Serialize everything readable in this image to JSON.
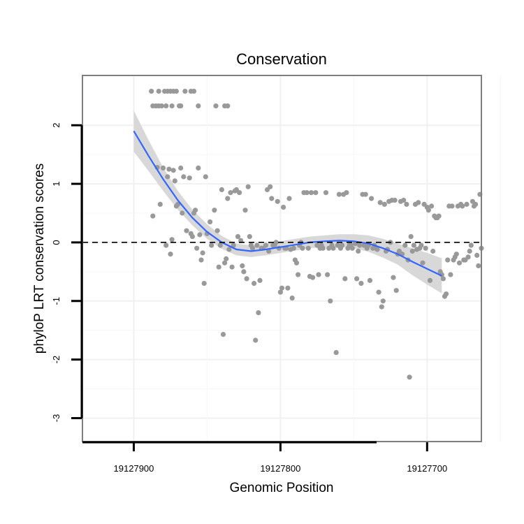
{
  "chart_data": {
    "type": "scatter",
    "title": "Conservation",
    "xlabel": "Genomic Position",
    "ylabel": "phyloP LRT conservation scores",
    "x_reversed": true,
    "xlim": [
      19127935,
      19127663
    ],
    "ylim": [
      -3.4,
      2.85
    ],
    "x_ticks": [
      19127900,
      19127800,
      19127700
    ],
    "x_tick_labels": [
      "19127900",
      "19127800",
      "19127700"
    ],
    "y_ticks": [
      -3,
      -2,
      -1,
      0,
      1,
      2
    ],
    "y_tick_labels": [
      "-3",
      "-2",
      "-1",
      "0",
      "1",
      "2"
    ],
    "reference_line_y": 0,
    "point_color": "#999999",
    "smooth_color": "#3366FF",
    "band_color": "#d4d4d4",
    "grid": true,
    "points": [
      [
        19127888,
        2.58
      ],
      [
        19127883,
        2.58
      ],
      [
        19127879,
        2.58
      ],
      [
        19127877,
        2.58
      ],
      [
        19127875,
        2.58
      ],
      [
        19127873,
        2.58
      ],
      [
        19127871,
        2.58
      ],
      [
        19127865,
        2.58
      ],
      [
        19127861,
        2.58
      ],
      [
        19127859,
        2.58
      ],
      [
        19127887,
        2.33
      ],
      [
        19127885,
        2.33
      ],
      [
        19127883,
        2.33
      ],
      [
        19127881,
        2.33
      ],
      [
        19127878,
        2.33
      ],
      [
        19127874,
        2.33
      ],
      [
        19127869,
        2.33
      ],
      [
        19127868,
        2.33
      ],
      [
        19127856,
        2.33
      ],
      [
        19127844,
        2.33
      ],
      [
        19127838,
        2.33
      ],
      [
        19127836,
        2.33
      ],
      [
        19127887,
        0.45
      ],
      [
        19127884,
        1.28
      ],
      [
        19127882,
        0.65
      ],
      [
        19127880,
        1.27
      ],
      [
        19127878,
        -0.05
      ],
      [
        19127877,
        1.12
      ],
      [
        19127876,
        1.25
      ],
      [
        19127875,
        -0.2
      ],
      [
        19127874,
        0.05
      ],
      [
        19127873,
        1.23
      ],
      [
        19127872,
        1.05
      ],
      [
        19127871,
        0.62
      ],
      [
        19127870,
        0.65
      ],
      [
        19127868,
        1.27
      ],
      [
        19127867,
        0.5
      ],
      [
        19127866,
        1.12
      ],
      [
        19127864,
        0.2
      ],
      [
        19127862,
        1.1
      ],
      [
        19127861,
        0.15
      ],
      [
        19127860,
        0.1
      ],
      [
        19127859,
        0.5
      ],
      [
        19127858,
        0.55
      ],
      [
        19127857,
        -0.1
      ],
      [
        19127856,
        1.27
      ],
      [
        19127855,
        0.13
      ],
      [
        19127854,
        -0.3
      ],
      [
        19127853,
        -0.18
      ],
      [
        19127852,
        -0.7
      ],
      [
        19127851,
        1.12
      ],
      [
        19127850,
        0.15
      ],
      [
        19127848,
        0.35
      ],
      [
        19127847,
        -0.05
      ],
      [
        19127845,
        0.55
      ],
      [
        19127843,
        0.2
      ],
      [
        19127842,
        -0.42
      ],
      [
        19127841,
        -0.05
      ],
      [
        19127840,
        0.9
      ],
      [
        19127839,
        -1.57
      ],
      [
        19127838,
        -0.35
      ],
      [
        19127837,
        -0.28
      ],
      [
        19127836,
        0.75
      ],
      [
        19127835,
        -0.12
      ],
      [
        19127834,
        0.85
      ],
      [
        19127833,
        -0.42
      ],
      [
        19127832,
        -0.05
      ],
      [
        19127831,
        0.88
      ],
      [
        19127830,
        0.9
      ],
      [
        19127829,
        0.1
      ],
      [
        19127828,
        0.85
      ],
      [
        19127827,
        0.03
      ],
      [
        19127826,
        -0.4
      ],
      [
        19127825,
        -0.5
      ],
      [
        19127824,
        0.55
      ],
      [
        19127823,
        -0.62
      ],
      [
        19127822,
        0.95
      ],
      [
        19127821,
        0.1
      ],
      [
        19127820,
        -0.05
      ],
      [
        19127819,
        -0.1
      ],
      [
        19127818,
        -0.7
      ],
      [
        19127817,
        -1.67
      ],
      [
        19127816,
        -0.05
      ],
      [
        19127815,
        -1.2
      ],
      [
        19127814,
        -0.65
      ],
      [
        19127813,
        -0.1
      ],
      [
        19127812,
        -0.1
      ],
      [
        19127810,
        -0.05
      ],
      [
        19127809,
        0.9
      ],
      [
        19127808,
        -0.15
      ],
      [
        19127807,
        0.95
      ],
      [
        19127806,
        0.75
      ],
      [
        19127805,
        -0.05
      ],
      [
        19127804,
        -0.05
      ],
      [
        19127803,
        0.0
      ],
      [
        19127802,
        0.7
      ],
      [
        19127801,
        -0.1
      ],
      [
        19127800,
        -0.85
      ],
      [
        19127799,
        -0.78
      ],
      [
        19127798,
        0.6
      ],
      [
        19127797,
        -0.1
      ],
      [
        19127796,
        -0.1
      ],
      [
        19127795,
        -0.78
      ],
      [
        19127794,
        0.75
      ],
      [
        19127793,
        -0.12
      ],
      [
        19127792,
        -0.95
      ],
      [
        19127791,
        -0.1
      ],
      [
        19127790,
        -0.3
      ],
      [
        19127789,
        -0.35
      ],
      [
        19127788,
        -0.55
      ],
      [
        19127787,
        -0.05
      ],
      [
        19127786,
        0.0
      ],
      [
        19127785,
        -0.1
      ],
      [
        19127784,
        0.85
      ],
      [
        19127782,
        0.85
      ],
      [
        19127781,
        -0.1
      ],
      [
        19127780,
        -0.58
      ],
      [
        19127779,
        0.85
      ],
      [
        19127778,
        -0.6
      ],
      [
        19127776,
        0.85
      ],
      [
        19127775,
        -0.05
      ],
      [
        19127774,
        -0.55
      ],
      [
        19127773,
        -0.1
      ],
      [
        19127772,
        -0.05
      ],
      [
        19127771,
        -0.1
      ],
      [
        19127769,
        0.85
      ],
      [
        19127768,
        -0.55
      ],
      [
        19127767,
        -0.1
      ],
      [
        19127766,
        -1.0
      ],
      [
        19127765,
        -0.05
      ],
      [
        19127764,
        -0.1
      ],
      [
        19127762,
        -1.88
      ],
      [
        19127761,
        -0.05
      ],
      [
        19127760,
        0.82
      ],
      [
        19127759,
        -0.1
      ],
      [
        19127758,
        -0.05
      ],
      [
        19127757,
        0.82
      ],
      [
        19127756,
        -0.62
      ],
      [
        19127755,
        0.85
      ],
      [
        19127754,
        -0.1
      ],
      [
        19127753,
        -0.05
      ],
      [
        19127752,
        -0.05
      ],
      [
        19127751,
        -0.1
      ],
      [
        19127749,
        -0.02
      ],
      [
        19127748,
        -0.62
      ],
      [
        19127747,
        -0.15
      ],
      [
        19127746,
        -0.05
      ],
      [
        19127745,
        -0.7
      ],
      [
        19127744,
        0.82
      ],
      [
        19127743,
        -0.05
      ],
      [
        19127742,
        0.82
      ],
      [
        19127741,
        -0.1
      ],
      [
        19127740,
        -0.05
      ],
      [
        19127739,
        -0.65
      ],
      [
        19127738,
        0.75
      ],
      [
        19127737,
        -0.1
      ],
      [
        19127736,
        -0.05
      ],
      [
        19127735,
        -0.1
      ],
      [
        19127734,
        -0.12
      ],
      [
        19127733,
        -0.85
      ],
      [
        19127732,
        0.68
      ],
      [
        19127731,
        -1.1
      ],
      [
        19127730,
        -1.0
      ],
      [
        19127729,
        0.65
      ],
      [
        19127728,
        -0.15
      ],
      [
        19127727,
        -0.12
      ],
      [
        19127726,
        0.7
      ],
      [
        19127725,
        0.0
      ],
      [
        19127724,
        0.72
      ],
      [
        19127723,
        -0.6
      ],
      [
        19127722,
        0.72
      ],
      [
        19127721,
        -0.82
      ],
      [
        19127720,
        -0.2
      ],
      [
        19127719,
        -0.15
      ],
      [
        19127718,
        0.7
      ],
      [
        19127717,
        -0.2
      ],
      [
        19127716,
        0.72
      ],
      [
        19127715,
        -0.05
      ],
      [
        19127714,
        0.65
      ],
      [
        19127713,
        -0.3
      ],
      [
        19127712,
        -2.3
      ],
      [
        19127711,
        0.1
      ],
      [
        19127710,
        -0.15
      ],
      [
        19127709,
        -0.05
      ],
      [
        19127708,
        0.65
      ],
      [
        19127707,
        -0.12
      ],
      [
        19127706,
        0.68
      ],
      [
        19127705,
        -0.1
      ],
      [
        19127704,
        -0.05
      ],
      [
        19127703,
        -0.35
      ],
      [
        19127702,
        0.65
      ],
      [
        19127701,
        -0.1
      ],
      [
        19127700,
        0.6
      ],
      [
        19127699,
        0.55
      ],
      [
        19127698,
        -0.65
      ],
      [
        19127697,
        0.62
      ],
      [
        19127696,
        -0.15
      ],
      [
        19127695,
        0.45
      ],
      [
        19127694,
        0.42
      ],
      [
        19127693,
        0.42
      ],
      [
        19127692,
        0.45
      ],
      [
        19127691,
        -0.5
      ],
      [
        19127690,
        -0.55
      ],
      [
        19127689,
        -0.62
      ],
      [
        19127688,
        -0.92
      ],
      [
        19127687,
        -0.88
      ],
      [
        19127686,
        -0.3
      ],
      [
        19127685,
        0.62
      ],
      [
        19127684,
        -0.55
      ],
      [
        19127683,
        0.62
      ],
      [
        19127682,
        -0.3
      ],
      [
        19127681,
        -0.25
      ],
      [
        19127680,
        -0.2
      ],
      [
        19127679,
        0.62
      ],
      [
        19127678,
        -0.35
      ],
      [
        19127677,
        0.65
      ],
      [
        19127676,
        0.62
      ],
      [
        19127675,
        -0.3
      ],
      [
        19127674,
        -0.3
      ],
      [
        19127673,
        0.65
      ],
      [
        19127672,
        -0.25
      ],
      [
        19127671,
        -0.15
      ],
      [
        19127670,
        -0.05
      ],
      [
        19127669,
        0.7
      ],
      [
        19127668,
        0.62
      ],
      [
        19127667,
        0.65
      ],
      [
        19127666,
        -0.22
      ],
      [
        19127665,
        -0.4
      ],
      [
        19127664,
        0.82
      ],
      [
        19127663,
        -0.1
      ]
    ],
    "smooth_fit": [
      [
        19127900,
        1.9
      ],
      [
        19127890,
        1.48
      ],
      [
        19127880,
        1.08
      ],
      [
        19127870,
        0.72
      ],
      [
        19127860,
        0.42
      ],
      [
        19127850,
        0.18
      ],
      [
        19127840,
        0.0
      ],
      [
        19127830,
        -0.12
      ],
      [
        19127820,
        -0.15
      ],
      [
        19127810,
        -0.12
      ],
      [
        19127800,
        -0.08
      ],
      [
        19127790,
        -0.04
      ],
      [
        19127780,
        0.0
      ],
      [
        19127770,
        0.02
      ],
      [
        19127760,
        0.03
      ],
      [
        19127750,
        0.02
      ],
      [
        19127740,
        -0.02
      ],
      [
        19127730,
        -0.1
      ],
      [
        19127720,
        -0.2
      ],
      [
        19127710,
        -0.33
      ],
      [
        19127700,
        -0.45
      ],
      [
        19127690,
        -0.57
      ]
    ],
    "smooth_band": [
      [
        19127900,
        2.25,
        1.55
      ],
      [
        19127890,
        1.75,
        1.22
      ],
      [
        19127880,
        1.28,
        0.88
      ],
      [
        19127870,
        0.88,
        0.56
      ],
      [
        19127860,
        0.56,
        0.29
      ],
      [
        19127850,
        0.31,
        0.06
      ],
      [
        19127840,
        0.11,
        -0.11
      ],
      [
        19127830,
        -0.02,
        -0.22
      ],
      [
        19127820,
        -0.05,
        -0.25
      ],
      [
        19127810,
        -0.02,
        -0.22
      ],
      [
        19127800,
        0.02,
        -0.18
      ],
      [
        19127790,
        0.06,
        -0.14
      ],
      [
        19127780,
        0.1,
        -0.1
      ],
      [
        19127770,
        0.12,
        -0.08
      ],
      [
        19127760,
        0.14,
        -0.08
      ],
      [
        19127750,
        0.14,
        -0.1
      ],
      [
        19127740,
        0.12,
        -0.16
      ],
      [
        19127730,
        0.06,
        -0.26
      ],
      [
        19127720,
        -0.02,
        -0.38
      ],
      [
        19127710,
        -0.1,
        -0.56
      ],
      [
        19127700,
        -0.18,
        -0.72
      ],
      [
        19127690,
        -0.27,
        -0.87
      ]
    ]
  }
}
